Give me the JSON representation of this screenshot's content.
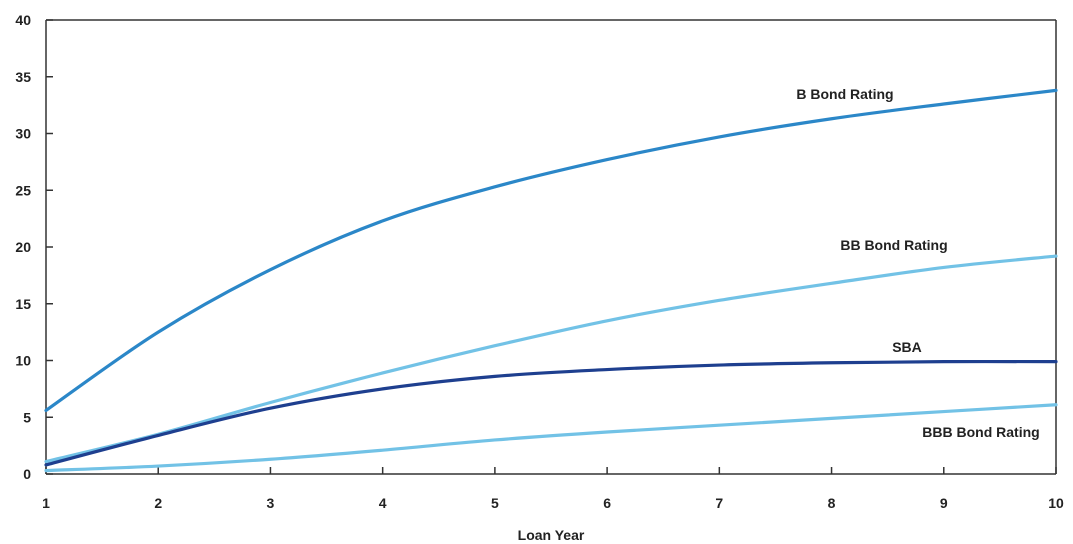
{
  "chart_data": {
    "type": "line",
    "title": "",
    "xlabel": "Loan Year",
    "ylabel": "",
    "x": [
      1,
      2,
      3,
      4,
      5,
      6,
      7,
      8,
      9,
      10
    ],
    "xlim": [
      1,
      10
    ],
    "ylim": [
      0,
      40
    ],
    "yticks": [
      0,
      5,
      10,
      15,
      20,
      25,
      30,
      35,
      40
    ],
    "grid": false,
    "series": [
      {
        "name": "B Bond Rating",
        "color": "#2b87c8",
        "values": [
          5.6,
          12.5,
          18.0,
          22.3,
          25.3,
          27.7,
          29.7,
          31.3,
          32.6,
          33.8
        ]
      },
      {
        "name": "BB Bond Rating",
        "color": "#72c2e6",
        "values": [
          1.1,
          3.5,
          6.3,
          8.9,
          11.3,
          13.5,
          15.3,
          16.8,
          18.2,
          19.2
        ]
      },
      {
        "name": "SBA",
        "color": "#1e3f8f",
        "values": [
          0.8,
          3.4,
          5.8,
          7.5,
          8.6,
          9.2,
          9.6,
          9.8,
          9.9,
          9.9
        ]
      },
      {
        "name": "BBB Bond Rating",
        "color": "#72c2e6",
        "values": [
          0.3,
          0.7,
          1.3,
          2.1,
          3.0,
          3.7,
          4.3,
          4.9,
          5.5,
          6.1
        ]
      }
    ]
  }
}
